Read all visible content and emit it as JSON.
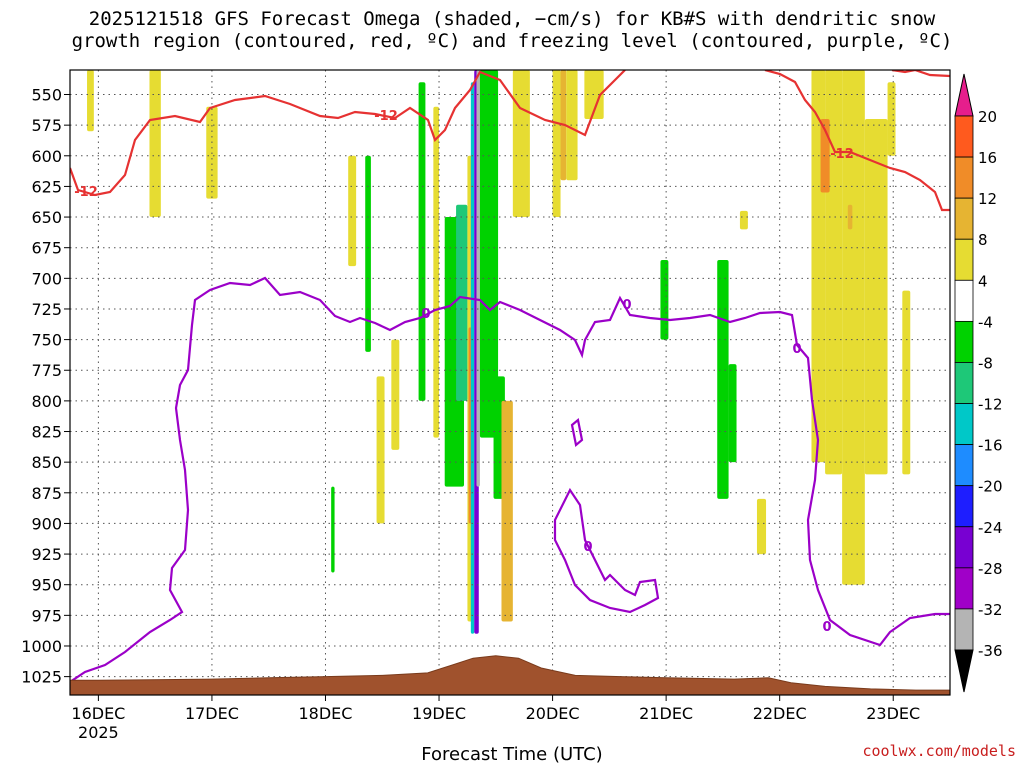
{
  "title_line1": "2025121518 GFS Forecast Omega (shaded, −cm/s) for KB#S with dendritic snow",
  "title_line2": "growth region (contoured, red, ºC) and freezing level (contoured, purple, ºC)",
  "xlabel": "Forecast Time (UTC)",
  "credit": "coolwx.com/models",
  "chart_data": {
    "type": "heatmap",
    "title": "2025121518 GFS Forecast Omega (shaded, −cm/s) for KB#S with dendritic snow growth region (contoured, red, ºC) and freezing level (contoured, purple, ºC)",
    "xlabel": "Forecast Time (UTC)",
    "ylabel": "",
    "x_ticks": [
      "16DEC",
      "17DEC",
      "18DEC",
      "19DEC",
      "20DEC",
      "21DEC",
      "22DEC",
      "23DEC"
    ],
    "x_tick_sublabel": "2025",
    "x_range_days": [
      15.75,
      23.5
    ],
    "y_ticks": [
      550,
      575,
      600,
      625,
      650,
      675,
      700,
      725,
      750,
      775,
      800,
      825,
      850,
      875,
      900,
      925,
      950,
      975,
      1000,
      1025
    ],
    "y_range_hpa": [
      530,
      1040
    ],
    "y_inverted": true,
    "grid": true,
    "colorbar": {
      "labels": [
        20,
        16,
        12,
        8,
        4,
        -4,
        -8,
        -12,
        -16,
        -20,
        -24,
        -28,
        -32,
        -36
      ],
      "colors": [
        "#ff1414",
        "#ff5a1e",
        "#f08c28",
        "#e6b432",
        "#e6dc32",
        "#ffffff",
        "#00d200",
        "#1ec878",
        "#00c8c8",
        "#1e8cff",
        "#1e1eff",
        "#7800d2",
        "#a000c8",
        "#b4b4b4",
        "#000000"
      ],
      "top_arrow_color": "#e61e8c",
      "bottom_arrow_color": "#000000"
    },
    "contours": [
      {
        "label": "-12",
        "color": "#e63232",
        "level_c": -12
      },
      {
        "label": "0",
        "color": "#9b00c8",
        "level_c": 0
      }
    ],
    "shaded_regions": [
      {
        "value": 6,
        "x": [
          15.9,
          15.96
        ],
        "p": [
          530,
          580
        ]
      },
      {
        "value": 6,
        "x": [
          16.45,
          16.55
        ],
        "p": [
          530,
          650
        ]
      },
      {
        "value": 6,
        "x": [
          16.95,
          17.05
        ],
        "p": [
          560,
          635
        ]
      },
      {
        "value": -6,
        "x": [
          18.35,
          18.4
        ],
        "p": [
          600,
          760
        ]
      },
      {
        "value": 6,
        "x": [
          18.2,
          18.27
        ],
        "p": [
          600,
          690
        ]
      },
      {
        "value": -6,
        "x": [
          18.05,
          18.08
        ],
        "p": [
          870,
          940
        ]
      },
      {
        "value": 6,
        "x": [
          18.45,
          18.52
        ],
        "p": [
          780,
          900
        ]
      },
      {
        "value": 6,
        "x": [
          18.58,
          18.65
        ],
        "p": [
          750,
          840
        ]
      },
      {
        "value": -6,
        "x": [
          18.82,
          18.88
        ],
        "p": [
          540,
          800
        ]
      },
      {
        "value": 6,
        "x": [
          18.95,
          19.0
        ],
        "p": [
          560,
          830
        ]
      },
      {
        "value": -6,
        "x": [
          19.05,
          19.22
        ],
        "p": [
          650,
          870
        ]
      },
      {
        "value": -10,
        "x": [
          19.15,
          19.25
        ],
        "p": [
          640,
          800
        ]
      },
      {
        "value": 6,
        "x": [
          19.25,
          19.3
        ],
        "p": [
          600,
          980
        ]
      },
      {
        "value": 14,
        "x": [
          19.26,
          19.29
        ],
        "p": [
          740,
          900
        ]
      },
      {
        "value": -14,
        "x": [
          19.28,
          19.31
        ],
        "p": [
          540,
          990
        ]
      },
      {
        "value": -26,
        "x": [
          19.31,
          19.35
        ],
        "p": [
          530,
          990
        ]
      },
      {
        "value": -36,
        "x": [
          19.33,
          19.36
        ],
        "p": [
          530,
          870
        ]
      },
      {
        "value": -6,
        "x": [
          19.36,
          19.52
        ],
        "p": [
          530,
          830
        ]
      },
      {
        "value": -6,
        "x": [
          19.48,
          19.58
        ],
        "p": [
          780,
          880
        ]
      },
      {
        "value": 8,
        "x": [
          19.55,
          19.65
        ],
        "p": [
          800,
          980
        ]
      },
      {
        "value": 6,
        "x": [
          19.65,
          19.8
        ],
        "p": [
          530,
          650
        ]
      },
      {
        "value": 6,
        "x": [
          20.0,
          20.07
        ],
        "p": [
          530,
          650
        ]
      },
      {
        "value": 10,
        "x": [
          20.07,
          20.12
        ],
        "p": [
          530,
          620
        ]
      },
      {
        "value": 6,
        "x": [
          20.12,
          20.22
        ],
        "p": [
          530,
          620
        ]
      },
      {
        "value": 6,
        "x": [
          20.28,
          20.45
        ],
        "p": [
          530,
          570
        ]
      },
      {
        "value": -6,
        "x": [
          20.95,
          21.02
        ],
        "p": [
          685,
          750
        ]
      },
      {
        "value": -6,
        "x": [
          21.45,
          21.55
        ],
        "p": [
          685,
          880
        ]
      },
      {
        "value": -6,
        "x": [
          21.55,
          21.62
        ],
        "p": [
          770,
          850
        ]
      },
      {
        "value": 6,
        "x": [
          21.65,
          21.72
        ],
        "p": [
          645,
          660
        ]
      },
      {
        "value": 6,
        "x": [
          22.28,
          22.4
        ],
        "p": [
          530,
          850
        ]
      },
      {
        "value": 6,
        "x": [
          22.4,
          22.55
        ],
        "p": [
          530,
          860
        ]
      },
      {
        "value": 12,
        "x": [
          22.36,
          22.44
        ],
        "p": [
          570,
          630
        ]
      },
      {
        "value": 6,
        "x": [
          22.55,
          22.75
        ],
        "p": [
          530,
          950
        ]
      },
      {
        "value": 10,
        "x": [
          22.6,
          22.64
        ],
        "p": [
          640,
          660
        ]
      },
      {
        "value": 6,
        "x": [
          22.75,
          22.95
        ],
        "p": [
          570,
          860
        ]
      },
      {
        "value": 6,
        "x": [
          22.95,
          23.02
        ],
        "p": [
          540,
          600
        ]
      },
      {
        "value": 6,
        "x": [
          23.08,
          23.15
        ],
        "p": [
          710,
          860
        ]
      },
      {
        "value": 6,
        "x": [
          21.8,
          21.88
        ],
        "p": [
          880,
          925
        ]
      }
    ]
  }
}
